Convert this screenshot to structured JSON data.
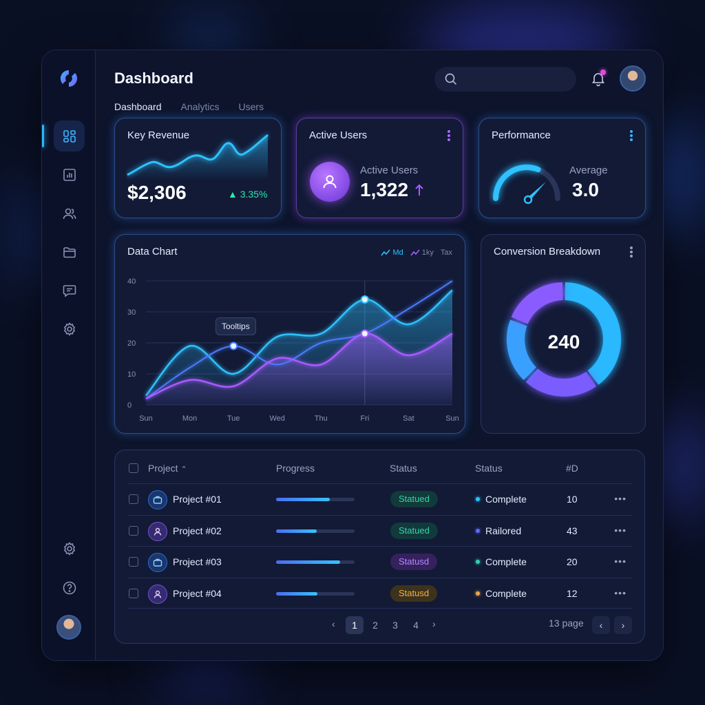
{
  "header": {
    "title": "Dashboard",
    "tabs": [
      {
        "label": "Dashboard",
        "active": true
      },
      {
        "label": "Analytics",
        "active": false
      },
      {
        "label": "Users",
        "active": false
      }
    ],
    "search_placeholder": ""
  },
  "sidebar": {
    "items": [
      "dashboard-icon",
      "bar-chart-icon",
      "users-icon",
      "folder-icon",
      "message-icon",
      "settings-icon"
    ],
    "bottom_items": [
      "settings-icon",
      "help-icon"
    ]
  },
  "cards": {
    "revenue": {
      "title": "Key Revenue",
      "value": "$2,306",
      "delta": "3.35%"
    },
    "active_users": {
      "title": "Active Users",
      "label": "Active Users",
      "value": "1,322"
    },
    "performance": {
      "title": "Performance",
      "label": "Average",
      "value": "3.0",
      "gauge_fraction": 0.62
    }
  },
  "data_chart": {
    "title": "Data Chart",
    "legend": [
      "Md",
      "1ky",
      "Tax"
    ],
    "tooltip": "Tooltips"
  },
  "chart_data": {
    "type": "area",
    "title": "Data Chart",
    "categories": [
      "Sun",
      "Mon",
      "Tue",
      "Wed",
      "Thu",
      "Fri",
      "Sat",
      "Sun"
    ],
    "y_ticks": [
      "0",
      "10",
      "20",
      "30",
      "40"
    ],
    "ylim": [
      0,
      40
    ],
    "series": [
      {
        "name": "Md",
        "color": "#2fc2ff",
        "values": [
          3,
          19,
          10,
          22,
          23,
          34,
          26,
          37
        ]
      },
      {
        "name": "1ky",
        "color": "#4a7cff",
        "values": [
          2,
          12,
          19,
          13,
          20,
          23,
          31,
          40
        ]
      },
      {
        "name": "Tax",
        "color": "#a95bff",
        "values": [
          2,
          8,
          6,
          15,
          13,
          23,
          16,
          23
        ]
      }
    ]
  },
  "conversion": {
    "title": "Conversion Breakdown",
    "center_value": "240",
    "segments": [
      {
        "value": 40,
        "color": "#2ab8ff"
      },
      {
        "value": 22,
        "color": "#7a5cff"
      },
      {
        "value": 19,
        "color": "#3aa0ff"
      },
      {
        "value": 19,
        "color": "#8a5cff"
      }
    ]
  },
  "table": {
    "headers": {
      "project": "Project",
      "progress": "Progress",
      "status1": "Status",
      "status2": "Status",
      "id": "#D"
    },
    "rows": [
      {
        "project": "Project #01",
        "icon": "briefcase-icon",
        "icon_color": "#2b6ed8",
        "progress": 0.68,
        "pill": "Statued",
        "pill_bg": "#113a3a",
        "pill_fg": "#37d3b0",
        "status": "Complete",
        "dot": "#2fc2ff",
        "id": "10"
      },
      {
        "project": "Project #02",
        "icon": "user-icon",
        "icon_color": "#7a4fe0",
        "progress": 0.52,
        "pill": "Statued",
        "pill_bg": "#113a3a",
        "pill_fg": "#37d3b0",
        "status": "Railored",
        "dot": "#5a6cf0",
        "id": "43"
      },
      {
        "project": "Project #03",
        "icon": "briefcase-icon",
        "icon_color": "#2b6ed8",
        "progress": 0.82,
        "pill": "Statusd",
        "pill_bg": "#35215e",
        "pill_fg": "#b48aff",
        "status": "Complete",
        "dot": "#2fd3b0",
        "id": "20"
      },
      {
        "project": "Project #04",
        "icon": "user-icon",
        "icon_color": "#7a4fe0",
        "progress": 0.53,
        "pill": "Statusd",
        "pill_bg": "#3d321c",
        "pill_fg": "#f0b04a",
        "status": "Complete",
        "dot": "#f0a64a",
        "id": "12"
      }
    ],
    "pages": [
      "1",
      "2",
      "3",
      "4"
    ],
    "active_page": "1",
    "page_info": "13 page"
  }
}
